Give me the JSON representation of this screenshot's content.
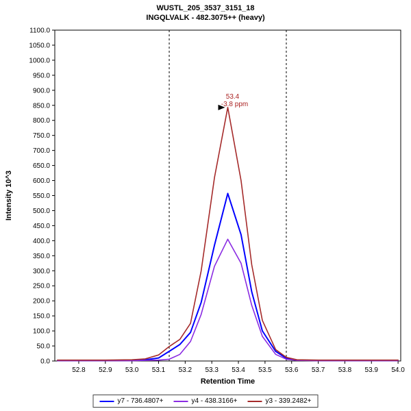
{
  "chart_data": {
    "type": "line",
    "title": "WUSTL_205_3537_3151_18",
    "subtitle": "INGQLVALK - 482.3075++ (heavy)",
    "xlabel": "Retention Time",
    "ylabel": "Intensity 10^3",
    "xlim": [
      52.71,
      54.01
    ],
    "ylim": [
      0,
      1100
    ],
    "ytick_step": 50,
    "xticks": [
      52.8,
      52.9,
      53.0,
      53.1,
      53.2,
      53.3,
      53.4,
      53.5,
      53.6,
      53.7,
      53.8,
      53.9,
      54.0
    ],
    "grid": false,
    "legend_position": "bottom",
    "boundaries": [
      53.14,
      53.58
    ],
    "annotation": {
      "x": 53.36,
      "y": 843,
      "rt_label": "53.4",
      "ppm_label": "-3.8 ppm",
      "color": "#aa2222"
    },
    "series": [
      {
        "id": "y7",
        "name": "y7 - 736.4807+",
        "color": "#0000ff",
        "width": 2,
        "points": [
          [
            52.72,
            2
          ],
          [
            52.8,
            2
          ],
          [
            52.9,
            2
          ],
          [
            53.0,
            3
          ],
          [
            53.05,
            4
          ],
          [
            53.1,
            10
          ],
          [
            53.14,
            32
          ],
          [
            53.18,
            55
          ],
          [
            53.22,
            95
          ],
          [
            53.26,
            195
          ],
          [
            53.31,
            385
          ],
          [
            53.36,
            557
          ],
          [
            53.41,
            420
          ],
          [
            53.45,
            230
          ],
          [
            53.49,
            100
          ],
          [
            53.54,
            32
          ],
          [
            53.58,
            9
          ],
          [
            53.62,
            3
          ],
          [
            53.7,
            2
          ],
          [
            53.8,
            2
          ],
          [
            53.9,
            2
          ],
          [
            54.0,
            2
          ]
        ]
      },
      {
        "id": "y4",
        "name": "y4 - 438.3166+",
        "color": "#8a2be2",
        "width": 1.6,
        "points": [
          [
            52.72,
            1
          ],
          [
            52.8,
            1
          ],
          [
            52.9,
            1
          ],
          [
            53.0,
            1
          ],
          [
            53.05,
            2
          ],
          [
            53.1,
            3
          ],
          [
            53.14,
            6
          ],
          [
            53.18,
            22
          ],
          [
            53.22,
            65
          ],
          [
            53.26,
            155
          ],
          [
            53.31,
            315
          ],
          [
            53.36,
            405
          ],
          [
            53.41,
            325
          ],
          [
            53.45,
            185
          ],
          [
            53.49,
            82
          ],
          [
            53.54,
            22
          ],
          [
            53.58,
            6
          ],
          [
            53.62,
            2
          ],
          [
            53.7,
            1
          ],
          [
            53.8,
            1
          ],
          [
            53.9,
            1
          ],
          [
            54.0,
            1
          ]
        ]
      },
      {
        "id": "y3",
        "name": "y3 - 339.2482+",
        "color": "#a52a2a",
        "width": 1.6,
        "points": [
          [
            52.72,
            3
          ],
          [
            52.8,
            3
          ],
          [
            52.9,
            3
          ],
          [
            53.0,
            4
          ],
          [
            53.05,
            7
          ],
          [
            53.1,
            20
          ],
          [
            53.14,
            48
          ],
          [
            53.18,
            72
          ],
          [
            53.22,
            125
          ],
          [
            53.26,
            300
          ],
          [
            53.31,
            610
          ],
          [
            53.36,
            843
          ],
          [
            53.41,
            600
          ],
          [
            53.45,
            320
          ],
          [
            53.49,
            135
          ],
          [
            53.54,
            38
          ],
          [
            53.58,
            12
          ],
          [
            53.62,
            4
          ],
          [
            53.7,
            3
          ],
          [
            53.8,
            3
          ],
          [
            53.9,
            3
          ],
          [
            54.0,
            3
          ]
        ]
      }
    ]
  }
}
